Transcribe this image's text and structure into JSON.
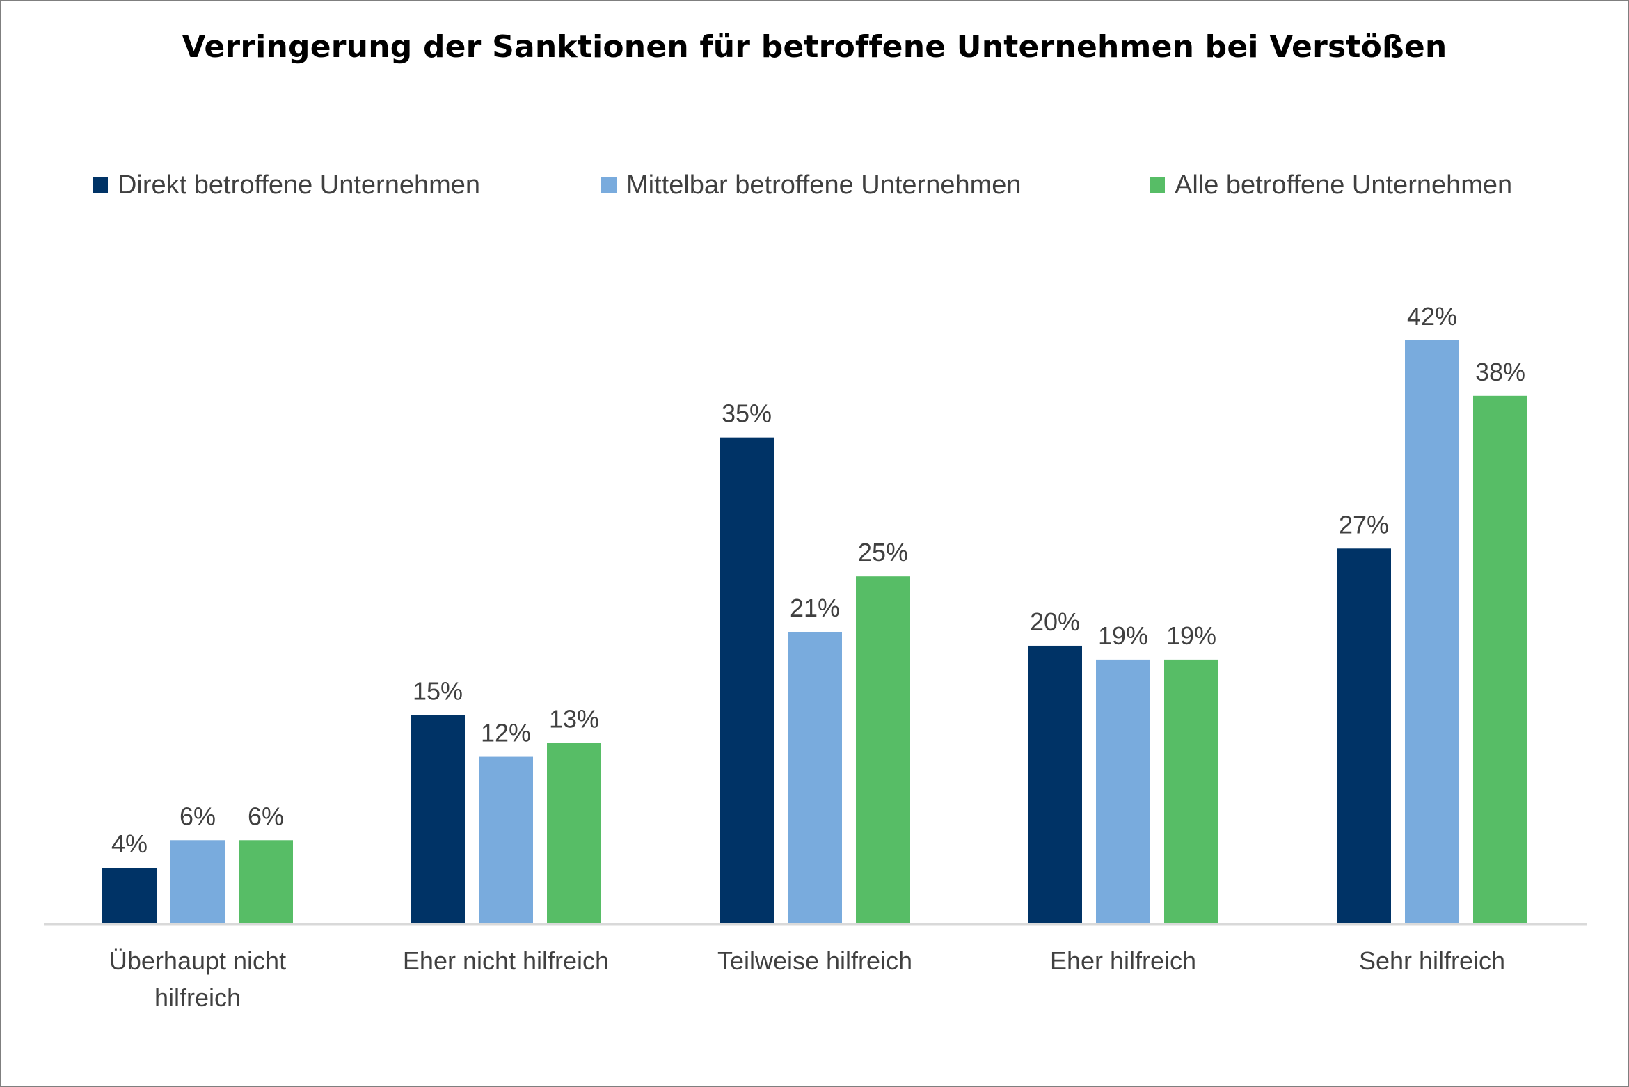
{
  "chart_data": {
    "type": "bar",
    "title": "Verringerung der Sanktionen für betroffene Unternehmen bei Verstößen",
    "categories": [
      [
        "Überhaupt nicht",
        "hilfreich"
      ],
      [
        "Eher nicht hilfreich"
      ],
      [
        "Teilweise hilfreich"
      ],
      [
        "Eher hilfreich"
      ],
      [
        "Sehr hilfreich"
      ]
    ],
    "series": [
      {
        "name": "Direkt betroffene Unternehmen",
        "color": "#003366",
        "values": [
          4,
          15,
          35,
          20,
          27
        ],
        "labels": [
          "4%",
          "15%",
          "35%",
          "20%",
          "27%"
        ]
      },
      {
        "name": "Mittelbar betroffene Unternehmen",
        "color": "#79ABDD",
        "values": [
          6,
          12,
          21,
          19,
          42
        ],
        "labels": [
          "6%",
          "12%",
          "21%",
          "19%",
          "42%"
        ]
      },
      {
        "name": "Alle betroffene Unternehmen",
        "color": "#57BD66",
        "values": [
          6,
          13,
          25,
          19,
          38
        ],
        "labels": [
          "6%",
          "13%",
          "25%",
          "19%",
          "38%"
        ]
      }
    ],
    "xlabel": "",
    "ylabel": "",
    "ylim": [
      0,
      42
    ],
    "grid": false,
    "legend": "top"
  }
}
